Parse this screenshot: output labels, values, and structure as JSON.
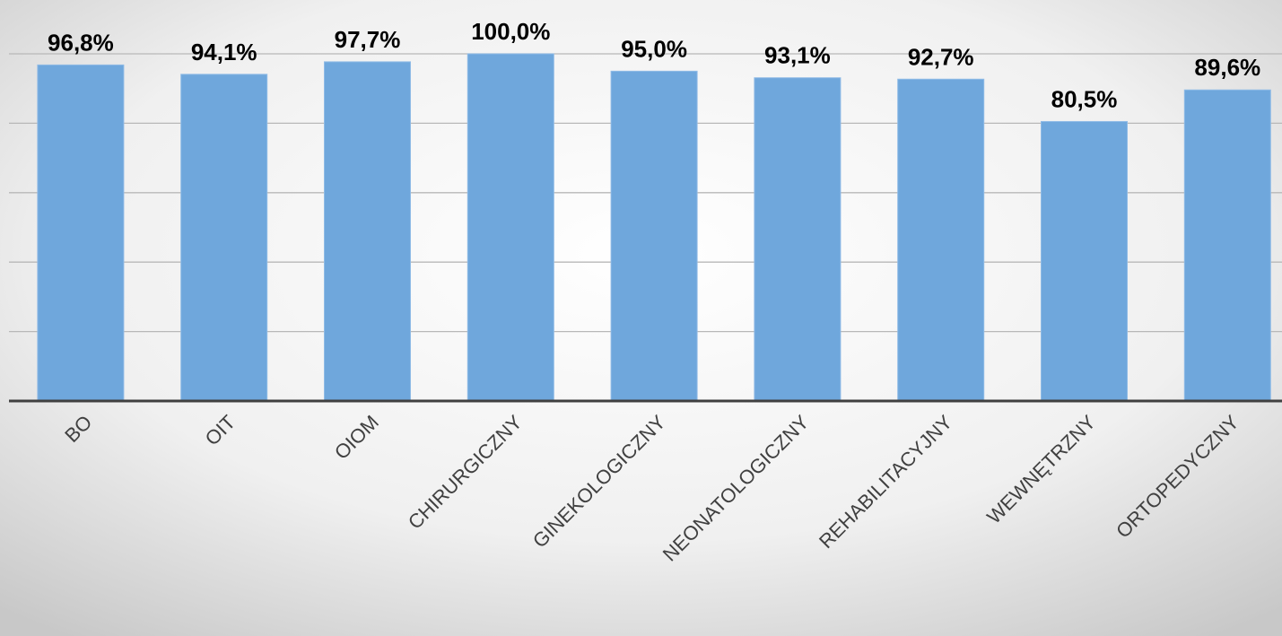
{
  "chart_data": {
    "type": "bar",
    "categories": [
      "BO",
      "OIT",
      "OIOM",
      "CHIRURGICZNY",
      "GINEKOLOGICZNY",
      "NEONATOLOGICZNY",
      "REHABILITACYJNY",
      "WEWNĘTRZNY",
      "ORTOPEDYCZNY"
    ],
    "values": [
      96.8,
      94.1,
      97.7,
      100.0,
      95.0,
      93.1,
      92.7,
      80.5,
      89.6
    ],
    "value_labels": [
      "96,8%",
      "94,1%",
      "97,7%",
      "100,0%",
      "95,0%",
      "93,1%",
      "92,7%",
      "80,5%",
      "89,6%"
    ],
    "color": "#6fa7dc",
    "ylim": [
      0,
      100
    ],
    "yticks": [
      0,
      20,
      40,
      60,
      80,
      100
    ],
    "grid": true
  }
}
